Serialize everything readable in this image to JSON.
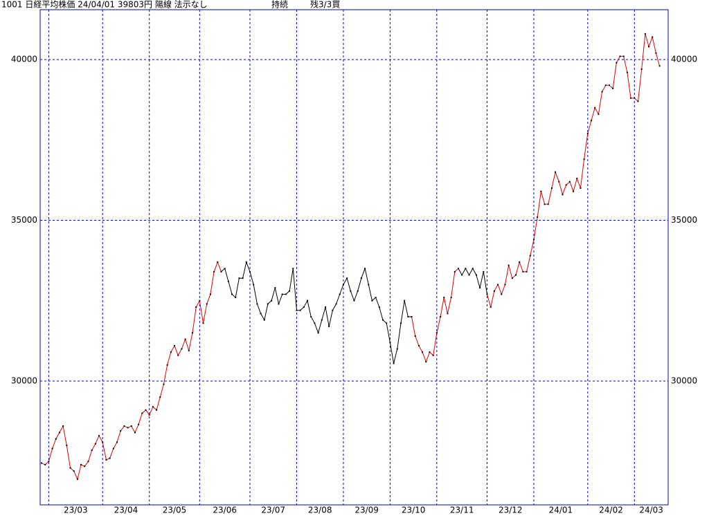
{
  "chart_data": {
    "type": "line",
    "title": "1001 日経平均株価 24/04/01 39803円 陽線 法示なし",
    "status": "持続",
    "position": "残3/3買",
    "values": [
      27450,
      27400,
      27500,
      27900,
      28200,
      28400,
      28600,
      28000,
      27300,
      27200,
      26950,
      27400,
      27350,
      27500,
      27850,
      28050,
      28300,
      28100,
      27550,
      27600,
      27900,
      28100,
      28450,
      28600,
      28550,
      28600,
      28400,
      28650,
      29000,
      29100,
      28950,
      29200,
      29100,
      29500,
      29900,
      30500,
      30900,
      31100,
      30800,
      31000,
      31300,
      30950,
      31500,
      32300,
      32500,
      31800,
      32400,
      32700,
      33400,
      33700,
      33400,
      33500,
      33100,
      32700,
      32600,
      33200,
      33200,
      33700,
      33400,
      33000,
      32400,
      32100,
      31900,
      32400,
      32500,
      32900,
      32400,
      32700,
      32700,
      32800,
      33500,
      32200,
      32200,
      32300,
      32500,
      32000,
      31800,
      31500,
      31900,
      32300,
      31700,
      32200,
      32400,
      32700,
      33000,
      33200,
      32800,
      32500,
      32800,
      33200,
      33500,
      33000,
      32500,
      32600,
      32300,
      31900,
      31800,
      31200,
      30550,
      31000,
      31800,
      32500,
      32000,
      32000,
      31400,
      31100,
      30900,
      30600,
      30900,
      30800,
      31500,
      32000,
      32600,
      32100,
      32600,
      33400,
      33500,
      33300,
      33500,
      33300,
      33500,
      33300,
      32900,
      33400,
      32700,
      32300,
      32800,
      33000,
      32700,
      33000,
      33600,
      33200,
      33300,
      33700,
      33400,
      33400,
      33900,
      34400,
      35100,
      35900,
      35500,
      35500,
      36000,
      36500,
      36200,
      35800,
      36100,
      36200,
      35900,
      36300,
      36000,
      36900,
      37700,
      38100,
      38500,
      38300,
      39000,
      39200,
      39200,
      39100,
      39900,
      40100,
      40100,
      39600,
      38800,
      38800,
      38700,
      39700,
      40800,
      40400,
      40700,
      40200,
      39800
    ],
    "line_colors": [
      {
        "from": 0,
        "color": "#e00000"
      },
      {
        "from": 50,
        "color": "#000000"
      },
      {
        "from": 103,
        "color": "#e00000"
      },
      {
        "from": 116,
        "color": "#000000"
      },
      {
        "from": 124,
        "color": "#e00000"
      }
    ],
    "marker_color": "#000000",
    "grid_color": "#0000c0",
    "xlim": [
      0,
      174
    ],
    "xticks": [
      {
        "value": 2,
        "label": "23/03"
      },
      {
        "value": 17,
        "label": "23/04"
      },
      {
        "value": 30,
        "label": "23/05"
      },
      {
        "value": 44,
        "label": "23/06"
      },
      {
        "value": 58,
        "label": "23/07"
      },
      {
        "value": 71,
        "label": "23/08"
      },
      {
        "value": 84,
        "label": "23/09"
      },
      {
        "value": 97,
        "label": "23/10"
      },
      {
        "value": 110,
        "label": "23/11"
      },
      {
        "value": 124,
        "label": "23/12"
      },
      {
        "value": 137,
        "label": "24/01"
      },
      {
        "value": 152,
        "label": "24/02"
      },
      {
        "value": 165,
        "label": "24/03"
      }
    ],
    "ylim": [
      26150,
      41550
    ],
    "yticks": [
      30000,
      35000,
      40000
    ],
    "grid": true
  }
}
